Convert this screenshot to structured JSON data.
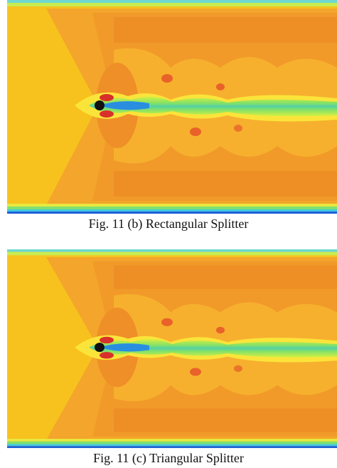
{
  "figures": [
    {
      "caption": "Fig. 11 (b) Rectangular Splitter"
    },
    {
      "caption": "Fig. 11 (c) Triangular Splitter"
    }
  ]
}
